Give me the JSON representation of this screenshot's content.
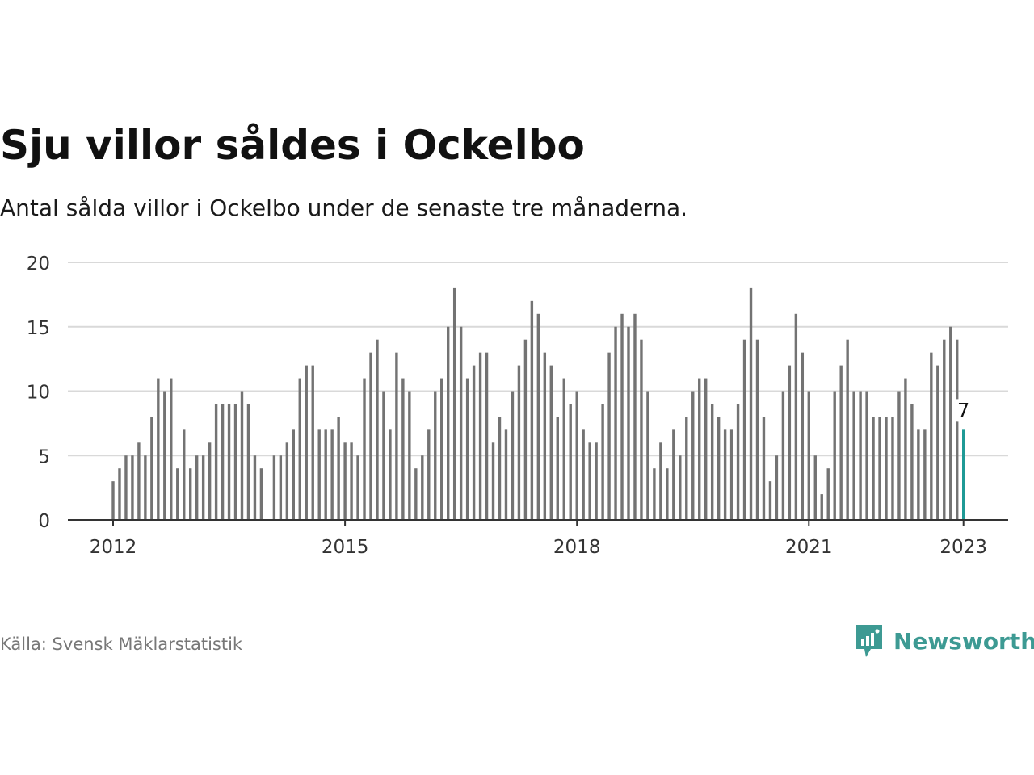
{
  "title": "Sju villor såldes i Ockelbo",
  "subtitle": "Antal sålda villor i Ockelbo under de senaste tre månaderna.",
  "source": "Källa: Svensk Mäklarstatistik",
  "brand": {
    "name": "Newsworthy",
    "icon": "bar-chart-speech-bubble-icon"
  },
  "colors": {
    "bar": "#737373",
    "highlight": "#1f9a96",
    "brand": "#3d9a93",
    "grid": "#d9d9d9",
    "axis": "#333333"
  },
  "chart_data": {
    "type": "bar",
    "x_start": "2012-01",
    "ylim": [
      0,
      20
    ],
    "yticks": [
      0,
      5,
      10,
      15,
      20
    ],
    "xticks": [
      {
        "label": "2012",
        "date": "2012-01"
      },
      {
        "label": "2015",
        "date": "2015-01"
      },
      {
        "label": "2018",
        "date": "2018-01"
      },
      {
        "label": "2021",
        "date": "2021-01"
      },
      {
        "label": "2023",
        "date": "2023-01"
      }
    ],
    "values": [
      3,
      4,
      5,
      5,
      6,
      5,
      8,
      11,
      10,
      11,
      4,
      7,
      4,
      5,
      5,
      6,
      9,
      9,
      9,
      9,
      10,
      9,
      5,
      4,
      null,
      5,
      5,
      6,
      7,
      11,
      12,
      12,
      7,
      7,
      7,
      8,
      6,
      6,
      5,
      11,
      13,
      14,
      10,
      7,
      13,
      11,
      10,
      4,
      5,
      7,
      10,
      11,
      15,
      18,
      15,
      11,
      12,
      13,
      13,
      6,
      8,
      7,
      10,
      12,
      14,
      17,
      16,
      13,
      12,
      8,
      11,
      9,
      10,
      7,
      6,
      6,
      9,
      13,
      15,
      16,
      15,
      16,
      14,
      10,
      4,
      6,
      4,
      7,
      5,
      8,
      10,
      11,
      11,
      9,
      8,
      7,
      7,
      9,
      14,
      18,
      14,
      8,
      3,
      5,
      10,
      12,
      16,
      13,
      10,
      5,
      2,
      4,
      10,
      12,
      14,
      10,
      10,
      10,
      8,
      8,
      8,
      8,
      10,
      11,
      9,
      7,
      7,
      13,
      12,
      14,
      15,
      14,
      7
    ],
    "highlight": {
      "date": "2023-01",
      "value": 7,
      "label": "7"
    }
  }
}
